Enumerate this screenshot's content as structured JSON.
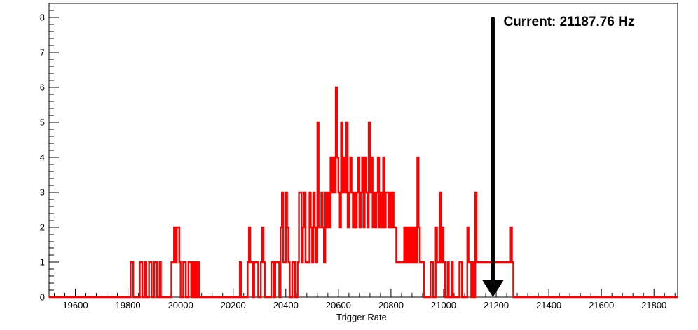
{
  "chart_data": {
    "type": "histogram",
    "title": "",
    "xlabel": "Trigger Rate",
    "ylabel": "",
    "xlim": [
      19500,
      21890
    ],
    "ylim": [
      0,
      8.4
    ],
    "x_ticks": [
      19600,
      19800,
      20000,
      20200,
      20400,
      20600,
      20800,
      21000,
      21200,
      21400,
      21600,
      21800
    ],
    "y_ticks": [
      0,
      1,
      2,
      3,
      4,
      5,
      6,
      7,
      8
    ],
    "bin_width": 5,
    "line_color": "#ff0000",
    "grid": false,
    "legend": "none",
    "series": [
      {
        "counts": {
          "19810": 1,
          "19815": 1,
          "19845": 1,
          "19850": 1,
          "19865": 1,
          "19880": 1,
          "19885": 1,
          "19900": 1,
          "19905": 1,
          "19920": 1,
          "19965": 1,
          "19970": 1,
          "19975": 2,
          "19980": 1,
          "19985": 2,
          "19990": 2,
          "19995": 1,
          "20010": 1,
          "20015": 1,
          "20030": 1,
          "20035": 1,
          "20045": 1,
          "20055": 1,
          "20065": 1,
          "20225": 1,
          "20255": 1,
          "20260": 2,
          "20265": 1,
          "20270": 1,
          "20280": 1,
          "20285": 1,
          "20290": 1,
          "20305": 1,
          "20310": 2,
          "20315": 1,
          "20345": 1,
          "20350": 1,
          "20360": 1,
          "20365": 1,
          "20370": 1,
          "20380": 2,
          "20385": 3,
          "20390": 1,
          "20395": 1,
          "20400": 3,
          "20405": 2,
          "20410": 1,
          "20425": 1,
          "20430": 1,
          "20445": 1,
          "20450": 3,
          "20455": 3,
          "20460": 1,
          "20465": 2,
          "20470": 3,
          "20475": 1,
          "20480": 1,
          "20485": 1,
          "20490": 3,
          "20495": 2,
          "20500": 1,
          "20505": 3,
          "20510": 2,
          "20515": 1,
          "20520": 5,
          "20525": 2,
          "20530": 2,
          "20535": 3,
          "20540": 2,
          "20545": 1,
          "20550": 3,
          "20555": 2,
          "20560": 3,
          "20565": 2,
          "20570": 4,
          "20575": 3,
          "20580": 4,
          "20585": 3,
          "20590": 6,
          "20595": 4,
          "20600": 3,
          "20605": 2,
          "20610": 5,
          "20615": 3,
          "20620": 4,
          "20625": 3,
          "20630": 5,
          "20635": 2,
          "20640": 3,
          "20645": 4,
          "20650": 3,
          "20655": 2,
          "20660": 3,
          "20665": 2,
          "20670": 3,
          "20675": 4,
          "20680": 2,
          "20685": 3,
          "20690": 4,
          "20695": 2,
          "20700": 4,
          "20705": 3,
          "20710": 2,
          "20715": 5,
          "20720": 3,
          "20725": 4,
          "20730": 2,
          "20735": 3,
          "20740": 2,
          "20745": 3,
          "20750": 4,
          "20755": 2,
          "20760": 3,
          "20765": 2,
          "20770": 4,
          "20775": 2,
          "20780": 3,
          "20785": 3,
          "20790": 2,
          "20795": 3,
          "20800": 2,
          "20805": 3,
          "20810": 2,
          "20815": 2,
          "20820": 1,
          "20825": 1,
          "20830": 1,
          "20835": 1,
          "20840": 1,
          "20845": 1,
          "20850": 2,
          "20855": 1,
          "20860": 2,
          "20865": 1,
          "20870": 2,
          "20875": 1,
          "20880": 2,
          "20885": 1,
          "20890": 2,
          "20895": 1,
          "20900": 4,
          "20905": 2,
          "20910": 1,
          "20915": 1,
          "20920": 1,
          "20950": 1,
          "20955": 1,
          "20970": 2,
          "20975": 1,
          "20980": 1,
          "20985": 3,
          "20990": 1,
          "20995": 2,
          "21000": 1,
          "21015": 1,
          "21030": 1,
          "21060": 1,
          "21065": 1,
          "21090": 2,
          "21095": 1,
          "21100": 1,
          "21110": 1,
          "21120": 3,
          "21125": 1,
          "21130": 1,
          "21135": 1,
          "21140": 1,
          "21145": 1,
          "21150": 1,
          "21155": 1,
          "21160": 1,
          "21165": 1,
          "21170": 1,
          "21175": 1,
          "21180": 1,
          "21185": 1,
          "21190": 1,
          "21195": 1,
          "21200": 1,
          "21205": 1,
          "21210": 1,
          "21215": 1,
          "21220": 1,
          "21225": 1,
          "21230": 1,
          "21235": 1,
          "21240": 1,
          "21245": 1,
          "21250": 1,
          "21255": 2,
          "21260": 1
        }
      }
    ],
    "annotations": [
      {
        "text": "Current: 21187.76 Hz",
        "x": 21187.76,
        "y_top": 8,
        "marker": "arrow-down"
      }
    ]
  }
}
